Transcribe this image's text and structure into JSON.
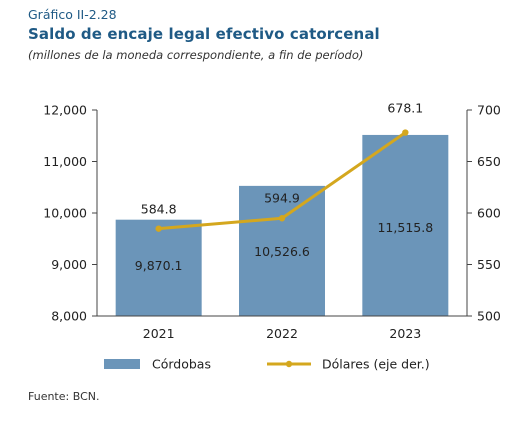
{
  "header": {
    "kicker": "Gráfico II-2.28",
    "title": "Saldo de encaje legal efectivo catorcenal",
    "subtitle": "(millones de la moneda correspondiente, a fin de período)"
  },
  "footer": {
    "source": "Fuente: BCN."
  },
  "colors": {
    "bar": "#6b95b9",
    "line": "#d4a71e",
    "axis": "#444444",
    "text": "#222222",
    "title": "#1f5a85"
  },
  "chart_data": {
    "type": "bar+line",
    "categories": [
      "2021",
      "2022",
      "2023"
    ],
    "series": [
      {
        "name": "Córdobas",
        "kind": "bar",
        "axis": "left",
        "values": [
          9870.1,
          10526.6,
          11515.8
        ],
        "labels": [
          "9,870.1",
          "10,526.6",
          "11,515.8"
        ]
      },
      {
        "name": "Dólares (eje der.)",
        "kind": "line",
        "axis": "right",
        "values": [
          584.8,
          594.9,
          678.1
        ],
        "labels": [
          "584.8",
          "594.9",
          "678.1"
        ]
      }
    ],
    "y_left": {
      "min": 8000,
      "max": 12000,
      "ticks": [
        8000,
        9000,
        10000,
        11000,
        12000
      ],
      "tick_labels": [
        "8,000",
        "9,000",
        "10,000",
        "11,000",
        "12,000"
      ]
    },
    "y_right": {
      "min": 500,
      "max": 700,
      "ticks": [
        500,
        550,
        600,
        650,
        700
      ],
      "tick_labels": [
        "500",
        "550",
        "600",
        "650",
        "700"
      ]
    },
    "grid": false,
    "legend_position": "bottom"
  }
}
